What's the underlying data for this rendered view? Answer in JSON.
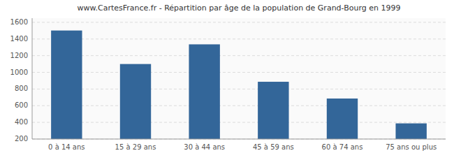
{
  "chart_data": {
    "type": "bar",
    "title": "www.CartesFrance.fr - Répartition par âge de la population de Grand-Bourg en 1999",
    "categories": [
      "0 à 14 ans",
      "15 à 29 ans",
      "30 à 44 ans",
      "45 à 59 ans",
      "60 à 74 ans",
      "75 ans ou plus"
    ],
    "values": [
      1502,
      1100,
      1336,
      887,
      686,
      388
    ],
    "color": "#336699",
    "ylim": [
      200,
      1650
    ],
    "yticks": [
      200,
      400,
      600,
      800,
      1000,
      1200,
      1400,
      1600
    ],
    "grid": true
  }
}
